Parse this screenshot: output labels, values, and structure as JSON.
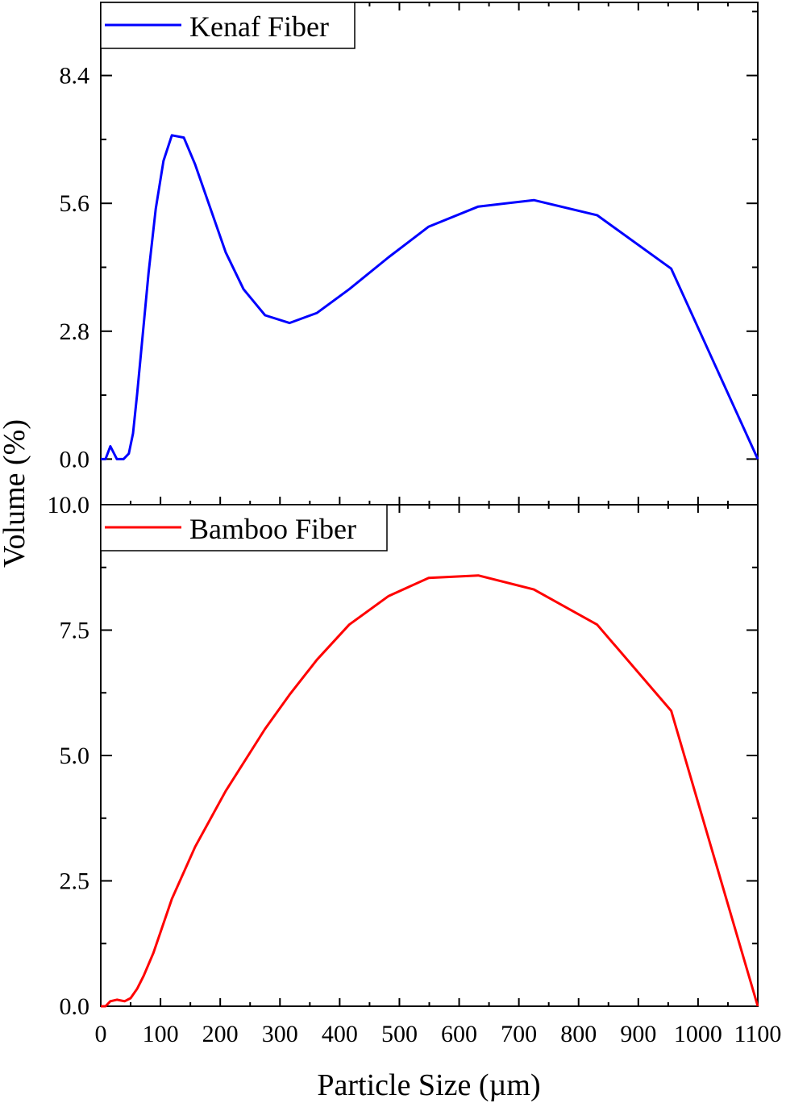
{
  "chart_data": [
    {
      "type": "line",
      "panel": "top",
      "legend": "top-left",
      "series": [
        {
          "name": "Kenaf Fiber",
          "color": "#0000ff",
          "x": [
            0,
            8,
            16,
            27,
            38,
            47,
            54,
            61,
            80,
            92,
            105,
            119,
            139,
            158,
            209,
            239,
            275,
            316,
            362,
            416,
            482,
            549,
            632,
            725,
            831,
            955,
            1100
          ],
          "y": [
            0,
            0,
            0.28,
            0,
            0,
            0.12,
            0.56,
            1.44,
            4.08,
            5.48,
            6.53,
            7.09,
            7.04,
            6.45,
            4.53,
            3.72,
            3.15,
            2.98,
            3.2,
            3.72,
            4.42,
            5.09,
            5.53,
            5.67,
            5.34,
            4.17,
            0
          ]
        }
      ],
      "ylim": [
        -1.0,
        10.0
      ],
      "yticks": [
        0.0,
        2.8,
        5.6,
        8.4
      ],
      "ytick_labels": [
        "0.0",
        "2.8",
        "5.6",
        "8.4"
      ],
      "xlim": [
        0,
        1100
      ],
      "grid": false
    },
    {
      "type": "line",
      "panel": "bottom",
      "legend": "top-left",
      "series": [
        {
          "name": "Bamboo Fiber",
          "color": "#ff0000",
          "x": [
            0,
            8,
            16,
            27,
            40,
            50,
            61,
            72,
            88,
            119,
            158,
            209,
            275,
            316,
            362,
            416,
            482,
            549,
            632,
            725,
            831,
            955,
            1100
          ],
          "y": [
            0,
            0,
            0.1,
            0.13,
            0.1,
            0.16,
            0.35,
            0.61,
            1.06,
            2.14,
            3.18,
            4.29,
            5.53,
            6.21,
            6.91,
            7.61,
            8.18,
            8.54,
            8.59,
            8.31,
            7.61,
            5.89,
            0
          ]
        }
      ],
      "ylim": [
        0,
        10.0
      ],
      "yticks": [
        0.0,
        2.5,
        5.0,
        7.5,
        10.0
      ],
      "ytick_labels": [
        "0.0",
        "2.5",
        "5.0",
        "7.5",
        "10.0"
      ],
      "xlim": [
        0,
        1100
      ],
      "xticks": [
        0,
        100,
        200,
        300,
        400,
        500,
        600,
        700,
        800,
        900,
        1000,
        1100
      ],
      "xtick_labels": [
        "0",
        "100",
        "200",
        "300",
        "400",
        "500",
        "600",
        "700",
        "800",
        "900",
        "1000",
        "1100"
      ],
      "grid": false
    }
  ],
  "xlabel": "Particle Size (µm)",
  "ylabel": "Volume (%)"
}
